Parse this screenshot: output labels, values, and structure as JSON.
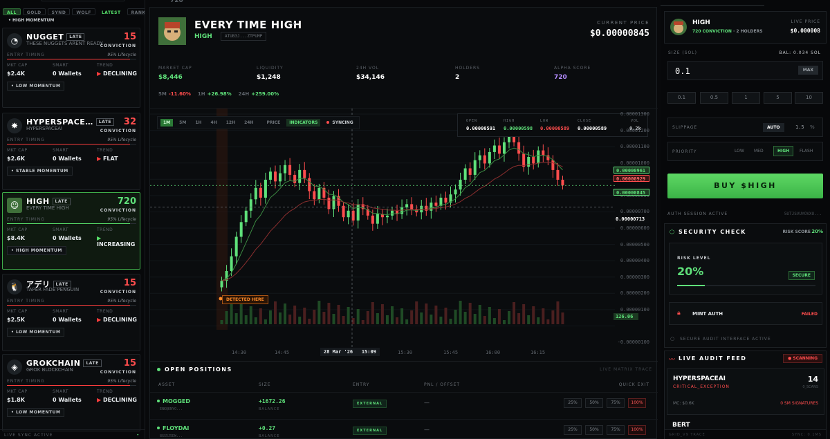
{
  "filters": [
    "ALL",
    "GOLD",
    "SYND",
    "WOLF",
    "LATEST",
    "RANK",
    "P"
  ],
  "coin_list": [
    {
      "name": "NUGGET",
      "badge": "LATE",
      "subtitle": "THESE NUGGETS ARENT READY",
      "score": "15",
      "conviction_label": "CONVICTION",
      "timing_label": "ENTRY TIMING",
      "lifecycle": "95% Lifecycle",
      "lifecycle_pct": 95,
      "mkt_cap_label": "MKT CAP",
      "mkt_cap": "$2.4K",
      "smart_label": "SMART",
      "smart": "0 Wallets",
      "trend_label": "TREND",
      "trend": "DECLINING",
      "momentum": "LOW MOMENTUM",
      "avatar_icon": "nugget-avatar-icon",
      "status_color": "#ff4d4d"
    },
    {
      "name": "HYPERSPACE…",
      "badge": "LATE",
      "subtitle": "HYPERSPACEAI",
      "score": "32",
      "conviction_label": "CONVICTION",
      "timing_label": "ENTRY TIMING",
      "lifecycle": "95% Lifecycle",
      "lifecycle_pct": 95,
      "mkt_cap_label": "MKT CAP",
      "mkt_cap": "$2.6K",
      "smart_label": "SMART",
      "smart": "0 Wallets",
      "trend_label": "TREND",
      "trend": "FLAT",
      "momentum": "STABLE MOMENTUM",
      "avatar_icon": "hyperspace-avatar-icon",
      "status_color": "#ff4d4d"
    },
    {
      "name": "HIGH",
      "badge": "LATE",
      "subtitle": "EVERY TIME HIGH",
      "score": "720",
      "conviction_label": "CONVICTION",
      "timing_label": "ENTRY TIMING",
      "lifecycle": "95% Lifecycle",
      "lifecycle_pct": 95,
      "mkt_cap_label": "MKT CAP",
      "mkt_cap": "$8.4K",
      "smart_label": "SMART",
      "smart": "0 Wallets",
      "trend_label": "TREND",
      "trend": "INCREASING",
      "momentum": "HIGH MOMENTUM",
      "avatar_icon": "high-avatar-icon",
      "status_color": "#5fe07a"
    },
    {
      "name": "アデリ",
      "badge": "LATE",
      "subtitle": "TAPER FADE PENGUIN",
      "score": "15",
      "conviction_label": "CONVICTION",
      "timing_label": "ENTRY TIMING",
      "lifecycle": "95% Lifecycle",
      "lifecycle_pct": 95,
      "mkt_cap_label": "MKT CAP",
      "mkt_cap": "$2.5K",
      "smart_label": "SMART",
      "smart": "0 Wallets",
      "trend_label": "TREND",
      "trend": "DECLINING",
      "momentum": "LOW MOMENTUM",
      "avatar_icon": "penguin-avatar-icon",
      "status_color": "#ff4d4d"
    },
    {
      "name": "GROKCHAIN",
      "badge": "LATE",
      "subtitle": "GROK BLOCKCHAIN",
      "score": "15",
      "conviction_label": "CONVICTION",
      "timing_label": "ENTRY TIMING",
      "lifecycle": "95% Lifecycle",
      "lifecycle_pct": 95,
      "mkt_cap_label": "MKT CAP",
      "mkt_cap": "$1.8K",
      "smart_label": "SMART",
      "smart": "0 Wallets",
      "trend_label": "TREND",
      "trend": "DECLINING",
      "momentum": "LOW MOMENTUM",
      "avatar_icon": "grokchain-avatar-icon",
      "status_color": "#ff4d4d"
    }
  ],
  "top_partial_momentum": "HIGH MOMENTUM",
  "left_footer": "LIVE SYNC ACTIVE",
  "token": {
    "name": "EVERY TIME HIGH",
    "symbol": "HIGH",
    "address": "ATUB3J...ZTPUMP",
    "current_price_label": "CURRENT PRICE",
    "current_price": "$0.00000845",
    "stats": [
      {
        "label": "MARKET CAP",
        "value": "$8,446",
        "color": "#5fe07a"
      },
      {
        "label": "LIQUIDITY",
        "value": "$1,248",
        "color": "#ffffff"
      },
      {
        "label": "24H VOL",
        "value": "$34,146",
        "color": "#ffffff"
      },
      {
        "label": "HOLDERS",
        "value": "2",
        "color": "#ffffff"
      },
      {
        "label": "ALPHA SCORE",
        "value": "720",
        "color": "#b48cff"
      }
    ],
    "changes": [
      {
        "label": "5M",
        "value": "-11.60%",
        "color": "#ff4d4d"
      },
      {
        "label": "1H",
        "value": "+26.98%",
        "color": "#5fe07a"
      },
      {
        "label": "24H",
        "value": "+259.00%",
        "color": "#5fe07a"
      }
    ]
  },
  "chart_toolbar": {
    "timeframes": [
      "1M",
      "5M",
      "1H",
      "4H",
      "12H",
      "24H"
    ],
    "active": "1M",
    "price_label": "PRICE",
    "indicators_label": "INDICATORS",
    "syncing_label": "SYNCING"
  },
  "ohlc": {
    "open_label": "OPEN",
    "open": "0.00000591",
    "high_label": "HIGH",
    "high": "0.00000598",
    "low_label": "LOW",
    "low": "0.00000589",
    "close_label": "CLOSE",
    "close": "0.00000589",
    "vol_label": "VOL",
    "vol": "0.2k"
  },
  "chart_data": {
    "type": "candlestick",
    "y_ticks": [
      "0.00001300",
      "0.00001200",
      "0.00001100",
      "0.00001000",
      "0.00000900",
      "0.00000800",
      "0.00000700",
      "0.00000600",
      "0.00000500",
      "0.00000400",
      "0.00000300",
      "0.00000200",
      "0.00000100",
      "-0.00000100"
    ],
    "ylim": [
      -1e-06,
      1.3e-05
    ],
    "x_ticks": [
      "14:30",
      "14:45",
      "15:30",
      "15:45",
      "16:00",
      "16:15"
    ],
    "crosshair_x_label": "28 Mar '26",
    "crosshair_time": "15:09",
    "crosshair_price": "0.00000713",
    "price_tags": [
      {
        "value": "0.00000961",
        "color": "#5fe07a"
      },
      {
        "value": "0.00000929",
        "color": "#ff4d4d"
      },
      {
        "value": "0.00000845",
        "color": "#5fe07a"
      }
    ],
    "volume_tag": "126.06",
    "detected_label": "DETECTED HERE",
    "close_series": [
      2.6,
      3.2,
      4.1,
      5.3,
      6.2,
      6.9,
      7.6,
      8.3,
      7.7,
      8.8,
      9.3,
      8.7,
      9.2,
      9.7,
      9.1,
      8.6,
      9.4,
      8.9,
      8.1,
      7.6,
      8.3,
      7.7,
      7.0,
      7.8,
      7.2,
      6.5,
      6.9,
      6.3,
      7.3,
      7.0,
      6.6,
      6.1,
      6.7,
      6.5,
      6.6,
      6.9,
      6.7,
      7.1,
      7.3,
      7.0,
      6.8,
      7.2,
      6.9,
      7.4,
      7.2,
      7.7,
      7.4,
      7.9,
      8.2,
      8.8,
      9.5,
      9.1,
      10.0,
      10.3,
      9.8,
      10.5,
      10.9,
      10.4,
      11.1,
      11.5,
      11.1,
      10.4,
      9.6,
      10.2,
      9.8,
      10.6,
      10.3,
      10.0,
      9.4,
      8.8,
      8.45
    ]
  },
  "positions": {
    "title": "OPEN POSITIONS",
    "trace": "LIVE MATRIX TRACE",
    "headers": {
      "asset": "ASSET",
      "size": "SIZE",
      "entry": "ENTRY",
      "pnl": "PNL / OFFSET",
      "quick": "QUICK EXIT"
    },
    "rows": [
      {
        "asset": "MOGGED",
        "addr": "ENKQKNYO...",
        "size": "+1672.26",
        "balance_label": "BALANCE",
        "entry": "EXTERNAL",
        "pnl": "—"
      },
      {
        "asset": "FLOYDAI",
        "addr": "8GS5J5DW...",
        "size": "+0.27",
        "balance_label": "BALANCE",
        "entry": "EXTERNAL",
        "pnl": "—"
      }
    ],
    "quick_exit": [
      "25%",
      "50%",
      "75%",
      "100%"
    ]
  },
  "trade": {
    "symbol": "HIGH",
    "conviction": "720 CONVICTION",
    "holders": "· 2 HOLDERS",
    "live_price_label": "LIVE PRICE",
    "live_price": "$0.000008",
    "size_label": "SIZE (SOL)",
    "balance": "BAL: 0.034 SOL",
    "amount": "0.1",
    "max_label": "MAX",
    "presets": [
      "0.1",
      "0.5",
      "1",
      "5",
      "10"
    ],
    "slippage_label": "SLIPPAGE",
    "slippage_mode": "AUTO",
    "slippage_value": "1.5",
    "slippage_unit": "%",
    "priority_label": "PRIORITY",
    "priorities": [
      "LOW",
      "MED",
      "HIGH",
      "FLASH"
    ],
    "priority_active": "HIGH",
    "buy_label": "BUY $HIGH",
    "auth_label": "AUTH SESSION ACTIVE",
    "auth_id": "5UTJSVUYOVXU..."
  },
  "security": {
    "title": "SECURITY CHECK",
    "risk_score_label": "RISK SCORE",
    "risk_score": "20%",
    "risk_level_label": "RISK LEVEL",
    "risk_level": "20%",
    "risk_pct": 20,
    "badge": "SECURE",
    "mint_label": "MINT AUTH",
    "mint_status": "FAILED",
    "footer": "SECURE AUDIT INTERFACE ACTIVE"
  },
  "audit": {
    "title": "LIVE AUDIT FEED",
    "scanning": "SCANNING",
    "item": {
      "name": "HYPERSPACEAI",
      "score": "14",
      "tag": "CRITICAL_EXCEPTION",
      "scans": "0_SCANS",
      "mc": "MC: $0.6K",
      "sigs": "0 SM SIGNATURES"
    },
    "next": "BERT",
    "footer_left": "GRID_V9 TRACE",
    "footer_right": "SYNC: 0.1MS"
  },
  "top_partial_value": "720"
}
